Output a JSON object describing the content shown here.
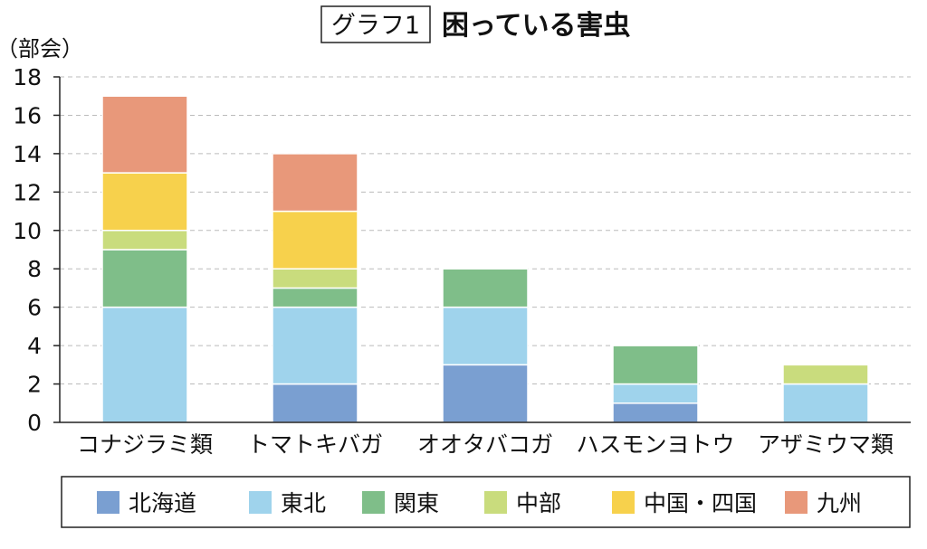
{
  "chart_data": {
    "type": "bar",
    "stacked": true,
    "title_tag": "グラフ1",
    "title": "困っている害虫",
    "ylabel": "（部会）",
    "xlabel": "",
    "ylim": [
      0,
      18
    ],
    "yticks": [
      0,
      2,
      4,
      6,
      8,
      10,
      12,
      14,
      16,
      18
    ],
    "grid": true,
    "legend_position": "bottom",
    "categories": [
      "コナジラミ類",
      "トマトキバガ",
      "オオタバコガ",
      "ハスモンヨトウ",
      "アザミウマ類"
    ],
    "series": [
      {
        "name": "北海道",
        "color": "#7a9fd1",
        "values": [
          0,
          2,
          3,
          1,
          0
        ]
      },
      {
        "name": "東北",
        "color": "#9fd3ec",
        "values": [
          6,
          4,
          3,
          1,
          2
        ]
      },
      {
        "name": "関東",
        "color": "#7fbe89",
        "values": [
          3,
          1,
          2,
          2,
          0
        ]
      },
      {
        "name": "中部",
        "color": "#c9dc7d",
        "values": [
          1,
          1,
          0,
          0,
          1
        ]
      },
      {
        "name": "中国・四国",
        "color": "#f7d14c",
        "values": [
          3,
          3,
          0,
          0,
          0
        ]
      },
      {
        "name": "九州",
        "color": "#e8987a",
        "values": [
          4,
          3,
          0,
          0,
          0
        ]
      }
    ]
  }
}
